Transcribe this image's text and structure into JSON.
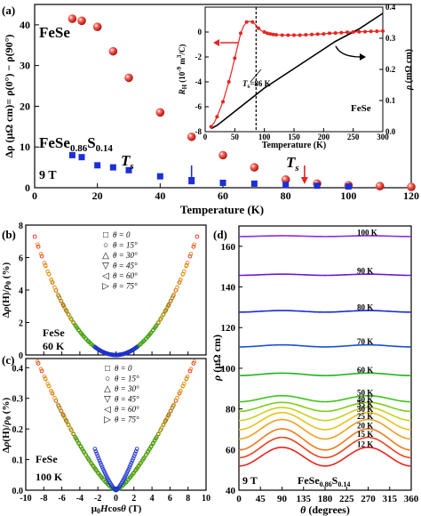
{
  "chart_data": [
    {
      "panel": "(a)",
      "type": "scatter",
      "xlabel": "Temperature (K)",
      "ylabel": "Δρ (μΩ cm)= ρ(0°) − ρ(90°)",
      "xlim": [
        0,
        120
      ],
      "ylim": [
        0,
        45
      ],
      "xticks": [
        "0",
        "20",
        "40",
        "60",
        "80",
        "100",
        "120"
      ],
      "yticks": [
        "0",
        "10",
        "20",
        "30",
        "40"
      ],
      "field_label": "9 T",
      "ts_label": "T",
      "ts_subscript": "s",
      "series": [
        {
          "name": "FeSe",
          "color": "#e8231f",
          "marker": "sphere",
          "x": [
            12,
            15,
            20,
            25,
            30,
            40,
            50,
            60,
            70,
            80,
            90,
            100,
            110,
            120
          ],
          "y": [
            41.5,
            41,
            39.5,
            33.5,
            27,
            18.5,
            12.5,
            8,
            5,
            2,
            1,
            0.6,
            0.4,
            0.2
          ]
        },
        {
          "name": "FeSe0.86S0.14",
          "label_main": "FeSe",
          "label_sub1": "0.86",
          "label_mid": "S",
          "label_sub2": "0.14",
          "color": "#1d2fd6",
          "marker": "square",
          "x": [
            12,
            15,
            20,
            25,
            30,
            40,
            50,
            60,
            70,
            80,
            90,
            100
          ],
          "y": [
            8,
            7.5,
            5.5,
            5,
            4.3,
            2.8,
            1.6,
            1.2,
            1,
            0.7,
            0.5,
            0.3
          ]
        }
      ],
      "arrows": [
        {
          "color": "#1d2fd6",
          "x": 50
        },
        {
          "color": "#e8231f",
          "x": 86
        }
      ]
    },
    {
      "panel": "inset",
      "type": "line",
      "xlabel": "Temperature (K)",
      "ylabel_left": "R_H (10^-9 m^3/C)",
      "ylabel_right": "ρ (mΩ cm)",
      "xlim": [
        0,
        300
      ],
      "ylim_left": [
        -8,
        2
      ],
      "ylim_right": [
        0,
        0.4
      ],
      "xticks": [
        "0",
        "50",
        "100",
        "150",
        "200",
        "250",
        "300"
      ],
      "yticks_left": [
        "-8",
        "-6",
        "-4",
        "-2",
        "0"
      ],
      "yticks_right": [
        "0.0",
        "0.1",
        "0.2",
        "0.3",
        "0.4"
      ],
      "sample_label": "FeSe",
      "ts_annotation": "T",
      "ts_annotation_sub": "s",
      "ts_annotation_rest": "=86 K",
      "series": [
        {
          "name": "R_H",
          "color": "#e8231f",
          "axis": "left",
          "x": [
            10,
            15,
            20,
            25,
            30,
            35,
            40,
            45,
            50,
            55,
            60,
            65,
            70,
            75,
            80,
            85,
            90,
            95,
            100,
            105,
            110,
            115,
            120,
            130,
            140,
            150,
            160,
            170,
            180,
            190,
            200,
            210,
            220,
            230,
            240,
            250,
            260,
            270,
            280,
            290,
            300
          ],
          "y": [
            -7.6,
            -7.3,
            -6.8,
            -6.2,
            -5.6,
            -4.8,
            -4,
            -3.1,
            -2.1,
            -1.1,
            -0.1,
            0.5,
            0.8,
            0.85,
            0.8,
            0.6,
            0.3,
            0.1,
            0,
            -0.1,
            -0.15,
            -0.2,
            -0.22,
            -0.25,
            -0.25,
            -0.25,
            -0.25,
            -0.22,
            -0.2,
            -0.17,
            -0.15,
            -0.1,
            -0.08,
            -0.05,
            -0.02,
            0,
            0.02,
            0.03,
            0.05,
            0.06,
            0.08
          ]
        },
        {
          "name": "ρ",
          "color": "#000000",
          "axis": "right",
          "x": [
            10,
            20,
            40,
            60,
            80,
            100,
            120,
            140,
            160,
            180,
            200,
            220,
            240,
            260,
            280,
            300
          ],
          "y": [
            0.01,
            0.02,
            0.05,
            0.08,
            0.11,
            0.14,
            0.165,
            0.19,
            0.215,
            0.24,
            0.265,
            0.29,
            0.31,
            0.33,
            0.355,
            0.38
          ]
        }
      ],
      "ts_line_x": 86
    },
    {
      "panel": "(b)",
      "type": "scatter",
      "xlabel": "",
      "ylabel": "Δρ(H)/ρ0 (%)",
      "xlim": [
        -10,
        10
      ],
      "ylim": [
        0,
        8
      ],
      "yticks": [
        "0",
        "2",
        "4",
        "6",
        "8"
      ],
      "sample_label": "FeSe",
      "temp_label": "60 K",
      "legend": [
        {
          "symbol": "□",
          "label": "θ = 0",
          "color": "#e8231f"
        },
        {
          "symbol": "○",
          "label": "θ = 15°",
          "color": "#f08a1c"
        },
        {
          "symbol": "△",
          "label": "θ = 30°",
          "color": "#d6c21a"
        },
        {
          "symbol": "▽",
          "label": "θ = 45°",
          "color": "#7a8a1a"
        },
        {
          "symbol": "◁",
          "label": "θ = 60°",
          "color": "#22b11f"
        },
        {
          "symbol": "▷",
          "label": "θ = 75°",
          "color": "#1d2fd6"
        }
      ],
      "curve_coefficient": 0.09
    },
    {
      "panel": "(c)",
      "type": "scatter",
      "xlabel": "μ0Hcosθ (T)",
      "ylabel": "Δρ(H)/ρ0 (%)",
      "xlim": [
        -10,
        10
      ],
      "ylim": [
        0,
        0.43
      ],
      "xticks": [
        "-10",
        "-8",
        "-6",
        "-4",
        "-2",
        "0",
        "2",
        "4",
        "6",
        "8",
        "10"
      ],
      "yticks": [
        "0.0",
        "0.1",
        "0.2",
        "0.3",
        "0.4"
      ],
      "sample_label": "FeSe",
      "temp_label": "100 K",
      "legend": [
        {
          "symbol": "□",
          "label": "θ = 0",
          "color": "#e8231f"
        },
        {
          "symbol": "○",
          "label": "θ = 15°",
          "color": "#f08a1c"
        },
        {
          "symbol": "△",
          "label": "θ = 30°",
          "color": "#d6c21a"
        },
        {
          "symbol": "▽",
          "label": "θ = 45°",
          "color": "#7a8a1a"
        },
        {
          "symbol": "◁",
          "label": "θ = 60°",
          "color": "#22b11f"
        },
        {
          "symbol": "▷",
          "label": "θ = 75°",
          "color": "#1d2fd6"
        }
      ],
      "curve_power": 1.35,
      "curve_scale": 0.44
    },
    {
      "panel": "(d)",
      "type": "line",
      "xlabel": "θ (degrees)",
      "ylabel": "ρ (μΩ cm)",
      "xlim": [
        0,
        360
      ],
      "ylim": [
        40,
        170
      ],
      "xticks": [
        "0",
        "45",
        "90",
        "135",
        "180",
        "225",
        "270",
        "315",
        "360"
      ],
      "yticks": [
        "40",
        "60",
        "80",
        "100",
        "120",
        "140",
        "160"
      ],
      "field_label": "9 T",
      "sample_main": "FeSe",
      "sample_sub1": "0.86",
      "sample_mid": "S",
      "sample_sub2": "0.14",
      "series": [
        {
          "name": "100 K",
          "color": "#8a2be2",
          "base": 165,
          "amp": 0.2
        },
        {
          "name": "90 K",
          "color": "#6a1ad0",
          "base": 146,
          "amp": 0.3
        },
        {
          "name": "80 K",
          "color": "#1a2ad6",
          "base": 128,
          "amp": 0.4
        },
        {
          "name": "70 K",
          "color": "#1750d8",
          "base": 111,
          "amp": 0.5
        },
        {
          "name": "60 K",
          "color": "#22b11f",
          "base": 97,
          "amp": 0.6
        },
        {
          "name": "50 K",
          "color": "#3ec41a",
          "base": 85,
          "amp": 1.5
        },
        {
          "name": "40 K",
          "color": "#7ccf18",
          "base": 81,
          "amp": 2.2
        },
        {
          "name": "35 K",
          "color": "#c8d21a",
          "base": 77.5,
          "amp": 3.2
        },
        {
          "name": "30 K",
          "color": "#e8c21a",
          "base": 74,
          "amp": 4.2
        },
        {
          "name": "25 K",
          "color": "#f0a01c",
          "base": 70,
          "amp": 4.8
        },
        {
          "name": "20 K",
          "color": "#f07a1c",
          "base": 65,
          "amp": 5.2
        },
        {
          "name": "15 K",
          "color": "#e8431f",
          "base": 61,
          "amp": 5.0
        },
        {
          "name": "12 K",
          "color": "#e8231f",
          "base": 56.5,
          "amp": 4.6
        }
      ]
    }
  ]
}
